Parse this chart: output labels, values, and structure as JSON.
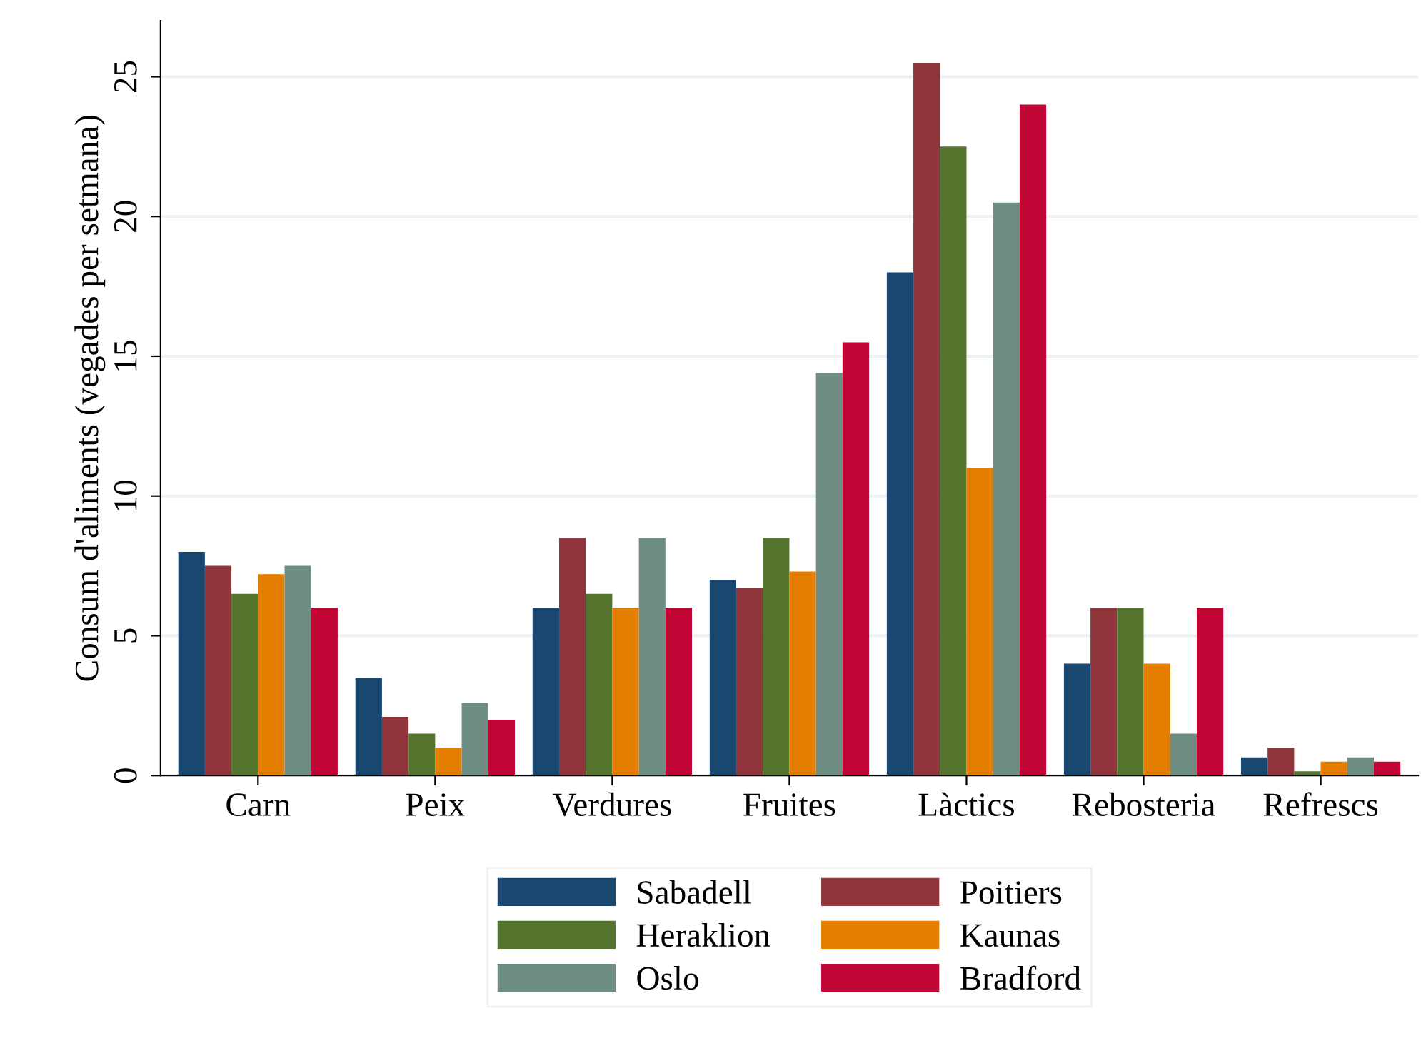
{
  "chart_data": {
    "type": "bar",
    "ylabel": "Consum d'aliments (vegades per setmana)",
    "categories": [
      "Carn",
      "Peix",
      "Verdures",
      "Fruites",
      "Làctics",
      "Rebosteria",
      "Refrescs"
    ],
    "series": [
      {
        "name": "Sabadell",
        "color": "#1a476f",
        "values": [
          8.0,
          3.5,
          6.0,
          7.0,
          18.0,
          4.0,
          0.65
        ]
      },
      {
        "name": "Poitiers",
        "color": "#90353b",
        "values": [
          7.5,
          2.1,
          8.5,
          6.7,
          25.5,
          6.0,
          1.0
        ]
      },
      {
        "name": "Heraklion",
        "color": "#55752f",
        "values": [
          6.5,
          1.5,
          6.5,
          8.5,
          22.5,
          6.0,
          0.15
        ]
      },
      {
        "name": "Kaunas",
        "color": "#e37e00",
        "values": [
          7.2,
          1.0,
          6.0,
          7.3,
          11.0,
          4.0,
          0.5
        ]
      },
      {
        "name": "Oslo",
        "color": "#6e8e84",
        "values": [
          7.5,
          2.6,
          8.5,
          14.4,
          20.5,
          1.5,
          0.65
        ]
      },
      {
        "name": "Bradford",
        "color": "#c10534",
        "values": [
          6.0,
          2.0,
          6.0,
          15.5,
          24.0,
          6.0,
          0.5
        ]
      }
    ],
    "ylim": [
      0,
      27
    ],
    "yticks": [
      0,
      5,
      10,
      15,
      20,
      25
    ],
    "grid": "y",
    "legend": "bottom"
  }
}
